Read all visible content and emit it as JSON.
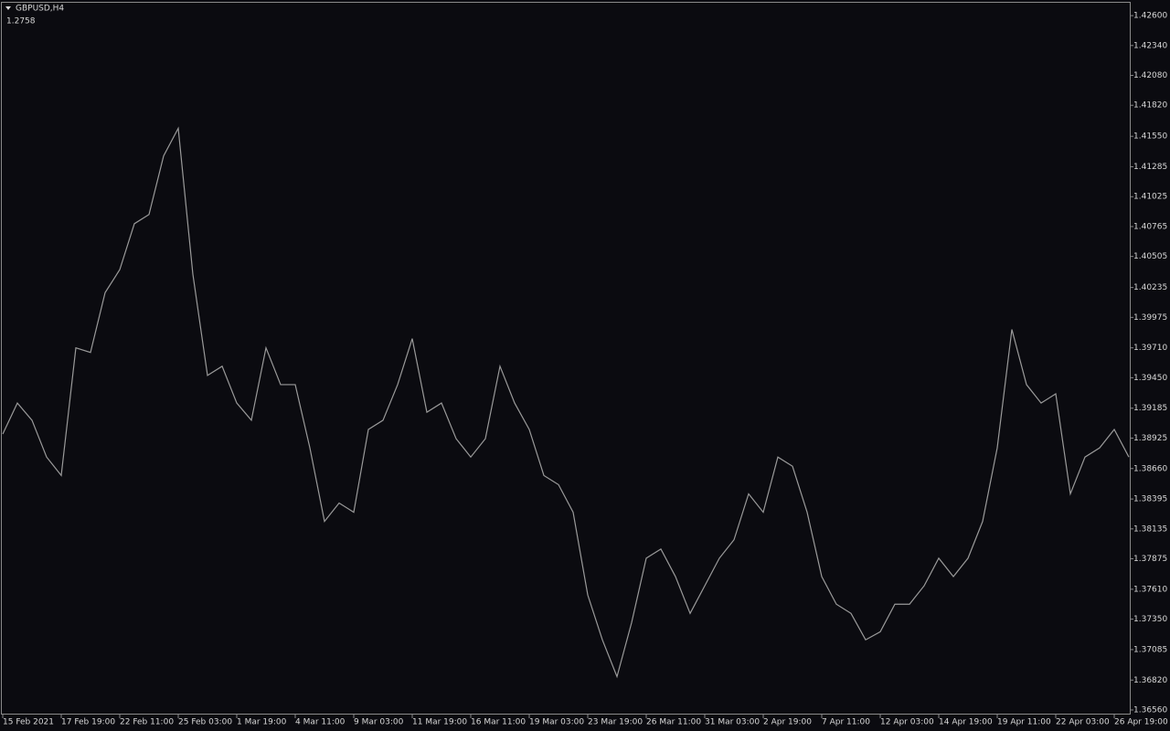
{
  "chart_data": {
    "type": "line",
    "title": "GBPUSD,H4",
    "annotation": "1.2758",
    "categories": [
      "15 Feb 2021",
      null,
      null,
      null,
      "17 Feb 19:00",
      null,
      null,
      null,
      "22 Feb 11:00",
      null,
      null,
      null,
      "25 Feb 03:00",
      null,
      null,
      null,
      "1 Mar 19:00",
      null,
      null,
      null,
      "4 Mar 11:00",
      null,
      null,
      null,
      "9 Mar 03:00",
      null,
      null,
      null,
      "11 Mar 19:00",
      null,
      null,
      null,
      "16 Mar 11:00",
      null,
      null,
      null,
      "19 Mar 03:00",
      null,
      null,
      null,
      "23 Mar 19:00",
      null,
      null,
      null,
      "26 Mar 11:00",
      null,
      null,
      null,
      "31 Mar 03:00",
      null,
      null,
      null,
      "2 Apr 19:00",
      null,
      null,
      null,
      "7 Apr 11:00",
      null,
      null,
      null,
      "12 Apr 03:00",
      null,
      null,
      null,
      "14 Apr 19:00",
      null,
      null,
      null,
      "19 Apr 11:00",
      null,
      null,
      null,
      "22 Apr 03:00",
      null,
      null,
      null,
      "26 Apr 19:00",
      null
    ],
    "values": [
      1.3896,
      1.3923,
      1.3908,
      1.3876,
      1.386,
      1.3971,
      1.3967,
      1.4019,
      1.4039,
      1.4079,
      1.4087,
      1.4138,
      1.4162,
      1.4035,
      1.3947,
      1.3955,
      1.3923,
      1.3908,
      1.3971,
      1.3939,
      1.3939,
      1.3884,
      1.382,
      1.3836,
      1.3828,
      1.39,
      1.3908,
      1.3939,
      1.3979,
      1.3915,
      1.3923,
      1.3892,
      1.3876,
      1.3892,
      1.3955,
      1.3923,
      1.39,
      1.386,
      1.3852,
      1.3828,
      1.3756,
      1.3717,
      1.3685,
      1.3732,
      1.3788,
      1.3796,
      1.3772,
      1.374,
      1.3764,
      1.3788,
      1.3804,
      1.3844,
      1.3828,
      1.3876,
      1.3868,
      1.3828,
      1.3772,
      1.3748,
      1.374,
      1.3717,
      1.3724,
      1.3748,
      1.3748,
      1.3764,
      1.3788,
      1.3772,
      1.3788,
      1.382,
      1.3884,
      1.3987,
      1.3939,
      1.3923,
      1.3931,
      1.3844,
      1.3876,
      1.3884,
      1.39,
      1.3876
    ],
    "color": "#9a9a9a",
    "ylim": [
      1.3652,
      1.4272
    ],
    "yticks": [
      {
        "value": 1.426,
        "label": "1.42600"
      },
      {
        "value": 1.4234,
        "label": "1.42340"
      },
      {
        "value": 1.4208,
        "label": "1.42080"
      },
      {
        "value": 1.4182,
        "label": "1.41820"
      },
      {
        "value": 1.4155,
        "label": "1.41550"
      },
      {
        "value": 1.41285,
        "label": "1.41285"
      },
      {
        "value": 1.41025,
        "label": "1.41025"
      },
      {
        "value": 1.40765,
        "label": "1.40765"
      },
      {
        "value": 1.40505,
        "label": "1.40505"
      },
      {
        "value": 1.40235,
        "label": "1.40235"
      },
      {
        "value": 1.39975,
        "label": "1.39975"
      },
      {
        "value": 1.3971,
        "label": "1.39710"
      },
      {
        "value": 1.3945,
        "label": "1.39450"
      },
      {
        "value": 1.39185,
        "label": "1.39185"
      },
      {
        "value": 1.38925,
        "label": "1.38925"
      },
      {
        "value": 1.3866,
        "label": "1.38660"
      },
      {
        "value": 1.38395,
        "label": "1.38395"
      },
      {
        "value": 1.38135,
        "label": "1.38135"
      },
      {
        "value": 1.37875,
        "label": "1.37875"
      },
      {
        "value": 1.3761,
        "label": "1.37610"
      },
      {
        "value": 1.3735,
        "label": "1.37350"
      },
      {
        "value": 1.37085,
        "label": "1.37085"
      },
      {
        "value": 1.3682,
        "label": "1.36820"
      },
      {
        "value": 1.3656,
        "label": "1.36560"
      }
    ],
    "grid": false
  }
}
